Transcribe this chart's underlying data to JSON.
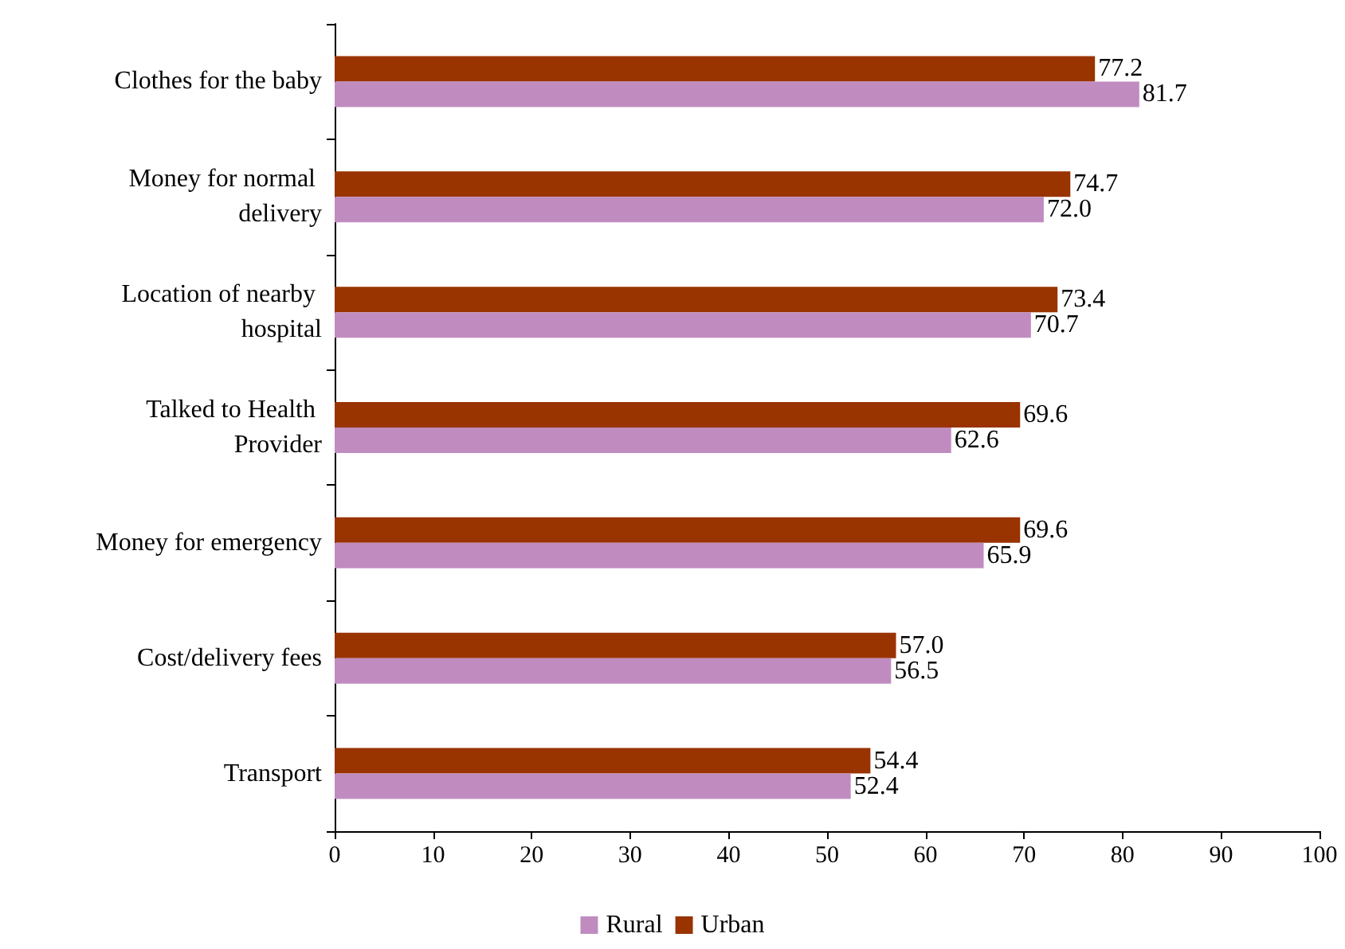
{
  "chart_data": {
    "type": "bar",
    "orientation": "horizontal",
    "categories": [
      "Clothes for the baby",
      "Money for normal delivery",
      "Location of nearby hospital",
      "Talked to Health Provider",
      "Money for emergency",
      "Cost/delivery fees",
      "Transport"
    ],
    "series": [
      {
        "name": "Urban",
        "color": "#993300",
        "values": [
          77.2,
          74.7,
          73.4,
          69.6,
          69.6,
          57.0,
          54.4
        ],
        "value_labels": [
          "77.2",
          "74.7",
          "73.4",
          "69.6",
          "69.6",
          "57.0",
          "54.4"
        ]
      },
      {
        "name": "Rural",
        "color": "#c08cbf",
        "values": [
          81.7,
          72.0,
          70.7,
          62.6,
          65.9,
          56.5,
          52.4
        ],
        "value_labels": [
          "81.7",
          "72.0",
          "70.7",
          "62.6",
          "65.9",
          "56.5",
          "52.4"
        ]
      }
    ],
    "xlim": [
      0,
      100
    ],
    "xticks": [
      0,
      10,
      20,
      30,
      40,
      50,
      60,
      70,
      80,
      90,
      100
    ],
    "legend": "bottom",
    "grid": false
  }
}
